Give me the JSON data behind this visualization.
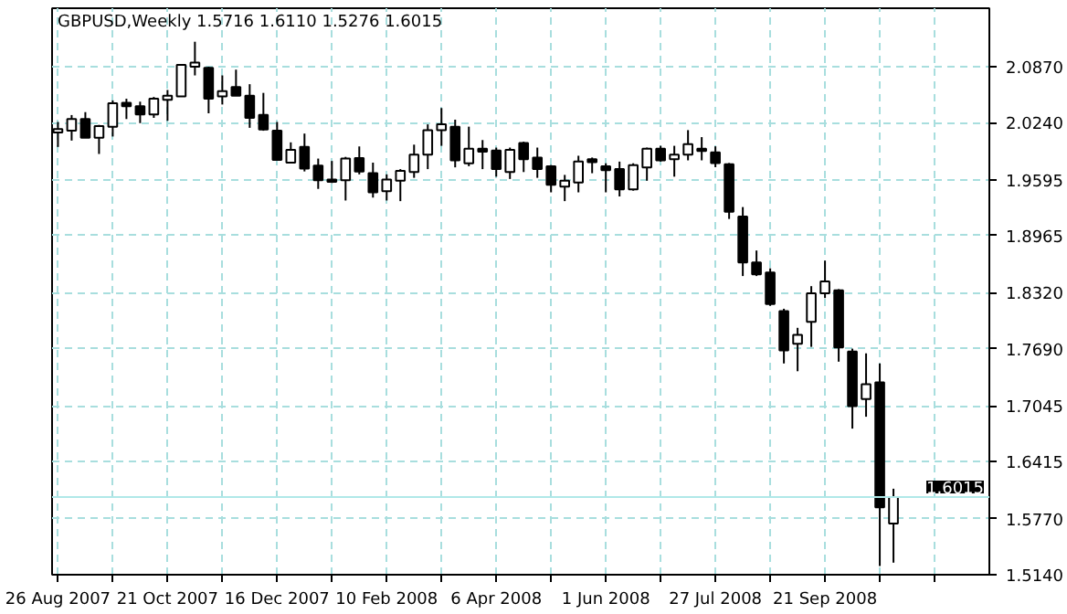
{
  "chart_data": {
    "type": "candlestick",
    "title": "GBPUSD,Weekly  1.5716 1.6110 1.5276 1.6015",
    "x": [
      "2007-08-26",
      "2007-09-02",
      "2007-09-09",
      "2007-09-16",
      "2007-09-23",
      "2007-09-30",
      "2007-10-07",
      "2007-10-14",
      "2007-10-21",
      "2007-10-28",
      "2007-11-04",
      "2007-11-11",
      "2007-11-18",
      "2007-11-25",
      "2007-12-02",
      "2007-12-09",
      "2007-12-16",
      "2007-12-23",
      "2007-12-30",
      "2008-01-06",
      "2008-01-13",
      "2008-01-20",
      "2008-01-27",
      "2008-02-03",
      "2008-02-10",
      "2008-02-17",
      "2008-02-24",
      "2008-03-02",
      "2008-03-09",
      "2008-03-16",
      "2008-03-23",
      "2008-03-30",
      "2008-04-06",
      "2008-04-13",
      "2008-04-20",
      "2008-04-27",
      "2008-05-04",
      "2008-05-11",
      "2008-05-18",
      "2008-05-25",
      "2008-06-01",
      "2008-06-08",
      "2008-06-15",
      "2008-06-22",
      "2008-06-29",
      "2008-07-06",
      "2008-07-13",
      "2008-07-20",
      "2008-07-27",
      "2008-08-03",
      "2008-08-10",
      "2008-08-17",
      "2008-08-24",
      "2008-08-31",
      "2008-09-07",
      "2008-09-14",
      "2008-09-21",
      "2008-09-28",
      "2008-10-05",
      "2008-10-12",
      "2008-10-19",
      "2008-10-26"
    ],
    "ohlc": [
      [
        2.0129,
        2.0247,
        1.9965,
        2.0168
      ],
      [
        2.0148,
        2.0325,
        2.0037,
        2.028
      ],
      [
        2.028,
        2.0358,
        2.007,
        2.007
      ],
      [
        2.007,
        2.0214,
        1.9886,
        2.0201
      ],
      [
        2.0194,
        2.049,
        2.0083,
        2.0457
      ],
      [
        2.0463,
        2.0509,
        2.028,
        2.0424
      ],
      [
        2.0424,
        2.0476,
        2.0234,
        2.0332
      ],
      [
        2.0332,
        2.0529,
        2.0293,
        2.0509
      ],
      [
        2.0496,
        2.0608,
        2.026,
        2.0542
      ],
      [
        2.0536,
        2.089,
        2.0536,
        2.089
      ],
      [
        2.087,
        2.1152,
        2.0772,
        2.0916
      ],
      [
        2.0857,
        2.087,
        2.0345,
        2.0509
      ],
      [
        2.0536,
        2.0772,
        2.0444,
        2.0594
      ],
      [
        2.064,
        2.0837,
        2.0542,
        2.0542
      ],
      [
        2.0542,
        2.0673,
        2.0181,
        2.0293
      ],
      [
        2.0326,
        2.0575,
        2.0148,
        2.0162
      ],
      [
        2.0148,
        2.0247,
        1.982,
        1.982
      ],
      [
        1.9788,
        2.0017,
        1.9788,
        1.9932
      ],
      [
        1.9965,
        2.0116,
        1.9689,
        1.9722
      ],
      [
        1.9755,
        1.9834,
        1.9492,
        1.9591
      ],
      [
        1.9597,
        1.9807,
        1.9558,
        1.9571
      ],
      [
        1.9591,
        1.9853,
        1.9361,
        1.9834
      ],
      [
        1.984,
        1.9971,
        1.9656,
        1.9689
      ],
      [
        1.967,
        1.9788,
        1.9394,
        1.9453
      ],
      [
        1.9466,
        1.9656,
        1.9361,
        1.9597
      ],
      [
        1.9584,
        1.9715,
        1.9354,
        1.9696
      ],
      [
        1.9682,
        1.9991,
        1.9617,
        1.9879
      ],
      [
        1.9879,
        2.022,
        1.9715,
        2.0155
      ],
      [
        2.0155,
        2.0404,
        1.9978,
        2.022
      ],
      [
        2.0194,
        2.0273,
        1.9735,
        1.9814
      ],
      [
        1.9781,
        2.0194,
        1.9748,
        1.9945
      ],
      [
        1.9945,
        2.0043,
        1.9715,
        1.9912
      ],
      [
        1.9925,
        1.9958,
        1.963,
        1.9715
      ],
      [
        1.9682,
        1.9958,
        1.9604,
        1.9932
      ],
      [
        2.001,
        2.0024,
        1.9682,
        1.9827
      ],
      [
        1.9846,
        1.9958,
        1.9617,
        1.9715
      ],
      [
        1.9748,
        1.9761,
        1.9453,
        1.9538
      ],
      [
        1.9518,
        1.965,
        1.9354,
        1.9584
      ],
      [
        1.9564,
        1.9866,
        1.9453,
        1.98
      ],
      [
        1.9827,
        1.9846,
        1.9669,
        1.9794
      ],
      [
        1.9748,
        1.9781,
        1.9453,
        1.9702
      ],
      [
        1.9715,
        1.98,
        1.9407,
        1.9486
      ],
      [
        1.9486,
        1.9781,
        1.9472,
        1.9761
      ],
      [
        1.9735,
        1.9958,
        1.9584,
        1.9945
      ],
      [
        1.9945,
        1.9978,
        1.98,
        1.9814
      ],
      [
        1.9827,
        1.9978,
        1.963,
        1.9879
      ],
      [
        1.9879,
        2.0155,
        1.9814,
        1.9997
      ],
      [
        1.9945,
        2.0076,
        1.9814,
        1.9919
      ],
      [
        1.9904,
        1.9972,
        1.9737,
        1.9784
      ],
      [
        1.977,
        1.9784,
        1.9153,
        1.9234
      ],
      [
        1.918,
        1.9287,
        1.8509,
        1.8663
      ],
      [
        1.8663,
        1.8797,
        1.8509,
        1.8529
      ],
      [
        1.8549,
        1.8596,
        1.8173,
        1.8193
      ],
      [
        1.8113,
        1.814,
        1.7523,
        1.767
      ],
      [
        1.7744,
        1.7925,
        1.7435,
        1.7845
      ],
      [
        1.7992,
        1.8395,
        1.771,
        1.8314
      ],
      [
        1.8314,
        1.8683,
        1.8261,
        1.8448
      ],
      [
        1.8348,
        1.8361,
        1.7543,
        1.7704
      ],
      [
        1.7657,
        1.769,
        1.6788,
        1.7042
      ],
      [
        1.7122,
        1.7637,
        1.6922,
        1.7289
      ],
      [
        1.7309,
        1.7523,
        1.5238,
        1.59
      ],
      [
        1.5716,
        1.611,
        1.5276,
        1.6015
      ]
    ],
    "xlim": [
      "2007-08-23",
      "2008-12-14"
    ],
    "xticks": [
      {
        "value": "2007-08-26",
        "label": "26 Aug 2007"
      },
      {
        "value": "2007-09-23",
        "label": null
      },
      {
        "value": "2007-10-21",
        "label": "21 Oct 2007"
      },
      {
        "value": "2007-11-18",
        "label": null
      },
      {
        "value": "2007-12-16",
        "label": "16 Dec 2007"
      },
      {
        "value": "2008-01-13",
        "label": null
      },
      {
        "value": "2008-02-10",
        "label": "10 Feb 2008"
      },
      {
        "value": "2008-03-09",
        "label": null
      },
      {
        "value": "2008-04-06",
        "label": "6 Apr 2008"
      },
      {
        "value": "2008-05-04",
        "label": null
      },
      {
        "value": "2008-06-01",
        "label": "1 Jun 2008"
      },
      {
        "value": "2008-06-29",
        "label": null
      },
      {
        "value": "2008-07-27",
        "label": "27 Jul 2008"
      },
      {
        "value": "2008-08-24",
        "label": null
      },
      {
        "value": "2008-09-21",
        "label": "21 Sep 2008"
      },
      {
        "value": "2008-10-19",
        "label": null
      },
      {
        "value": "2008-11-16",
        "label": null
      }
    ],
    "ylim": [
      1.514,
      2.153
    ],
    "yticks": [
      {
        "value": 1.514,
        "label": "1.5140"
      },
      {
        "value": 1.577,
        "label": "1.5770"
      },
      {
        "value": 1.6415,
        "label": "1.6415"
      },
      {
        "value": 1.7045,
        "label": "1.7045"
      },
      {
        "value": 1.769,
        "label": "1.7690"
      },
      {
        "value": 1.832,
        "label": "1.8320"
      },
      {
        "value": 1.8965,
        "label": "1.8965"
      },
      {
        "value": 1.9595,
        "label": "1.9595"
      },
      {
        "value": 2.024,
        "label": "2.0240"
      },
      {
        "value": 2.087,
        "label": "2.0870"
      }
    ],
    "ref_lines": [
      {
        "axis": "y",
        "value": 1.6015,
        "label": "1.6015",
        "color": "#b0e8e8"
      }
    ],
    "grid": true
  }
}
